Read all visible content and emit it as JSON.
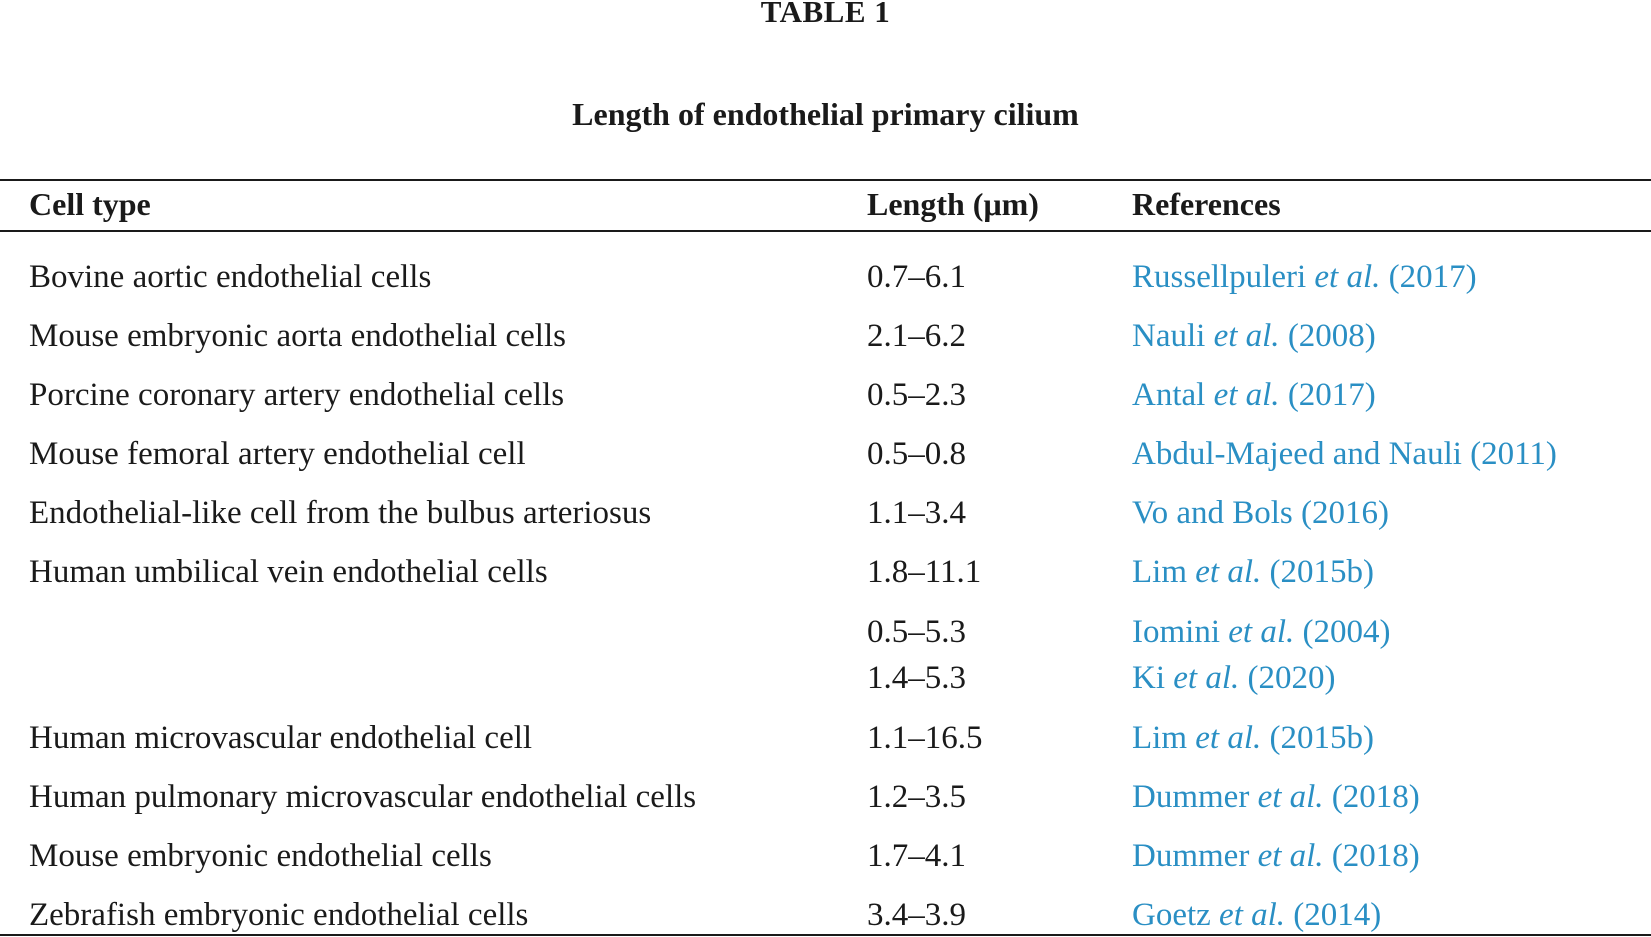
{
  "table": {
    "label": "TABLE 1",
    "title": "Length of endothelial primary cilium",
    "headers": {
      "cell_type": "Cell type",
      "length": "Length (μm)",
      "references": "References"
    },
    "rows": [
      {
        "cell_type": "Bovine aortic endothelial cells",
        "length": "0.7–6.1",
        "ref_pre": "Russellpuleri ",
        "ref_etal": "et al.",
        "ref_post": " (2017)"
      },
      {
        "cell_type": "Mouse embryonic aorta endothelial cells",
        "length": "2.1–6.2",
        "ref_pre": "Nauli ",
        "ref_etal": "et al.",
        "ref_post": " (2008)"
      },
      {
        "cell_type": "Porcine coronary artery endothelial cells",
        "length": "0.5–2.3",
        "ref_pre": "Antal ",
        "ref_etal": "et al.",
        "ref_post": " (2017)"
      },
      {
        "cell_type": "Mouse femoral artery endothelial cell",
        "length": "0.5–0.8",
        "ref_pre": "Abdul-Majeed and Nauli (2011)",
        "ref_etal": "",
        "ref_post": ""
      },
      {
        "cell_type": "Endothelial-like cell from the bulbus arteriosus",
        "length": "1.1–3.4",
        "ref_pre": "Vo and Bols (2016)",
        "ref_etal": "",
        "ref_post": ""
      },
      {
        "cell_type": "Human umbilical vein endothelial cells",
        "length": "1.8–11.1",
        "ref_pre": "Lim ",
        "ref_etal": "et al.",
        "ref_post": " (2015b)"
      },
      {
        "cell_type": "",
        "length": "0.5–5.3",
        "ref_pre": "Iomini ",
        "ref_etal": "et al.",
        "ref_post": " (2004)"
      },
      {
        "cell_type": "",
        "length": "1.4–5.3",
        "ref_pre": "Ki ",
        "ref_etal": "et al.",
        "ref_post": " (2020)"
      },
      {
        "cell_type": "Human microvascular endothelial cell",
        "length": "1.1–16.5",
        "ref_pre": "Lim ",
        "ref_etal": "et al.",
        "ref_post": " (2015b)"
      },
      {
        "cell_type": "Human pulmonary microvascular endothelial cells",
        "length": "1.2–3.5",
        "ref_pre": "Dummer ",
        "ref_etal": "et al.",
        "ref_post": " (2018)"
      },
      {
        "cell_type": "Mouse embryonic endothelial cells",
        "length": "1.7–4.1",
        "ref_pre": "Dummer ",
        "ref_etal": "et al.",
        "ref_post": " (2018)"
      },
      {
        "cell_type": "Zebrafish embryonic endothelial cells",
        "length": "3.4–3.9",
        "ref_pre": "Goetz ",
        "ref_etal": "et al.",
        "ref_post": " (2014)"
      }
    ]
  }
}
